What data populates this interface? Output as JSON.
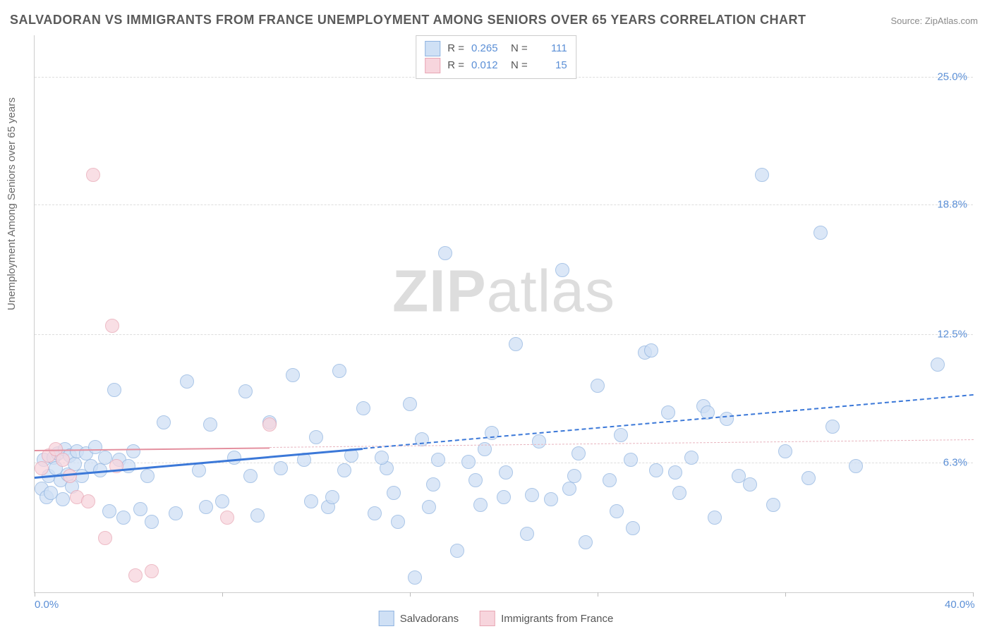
{
  "title": "SALVADORAN VS IMMIGRANTS FROM FRANCE UNEMPLOYMENT AMONG SENIORS OVER 65 YEARS CORRELATION CHART",
  "source": "Source: ZipAtlas.com",
  "ylabel": "Unemployment Among Seniors over 65 years",
  "watermark_a": "ZIP",
  "watermark_b": "atlas",
  "chart": {
    "type": "scatter",
    "xlim": [
      0,
      40
    ],
    "ylim": [
      0,
      27
    ],
    "x_ticks": [
      0,
      8,
      16,
      24,
      32,
      40
    ],
    "x_tick_labels_shown": {
      "0": "0.0%",
      "40": "40.0%"
    },
    "y_ticks": [
      6.3,
      12.5,
      18.8,
      25.0
    ],
    "y_tick_labels": [
      "6.3%",
      "12.5%",
      "18.8%",
      "25.0%"
    ],
    "grid_color": "#dddddd",
    "axis_color": "#cccccc",
    "background_color": "#ffffff",
    "tick_label_color": "#5b8fd6",
    "label_fontsize": 15,
    "title_fontsize": 18,
    "point_radius": 9,
    "series": [
      {
        "name": "Salvadorans",
        "fill": "#cfe0f5",
        "stroke": "#8fb3e0",
        "fill_opacity": 0.75,
        "trend": {
          "x1": 0,
          "y1": 5.6,
          "x2": 40,
          "y2": 9.6,
          "color": "#3b78d8",
          "width": 3,
          "dash_after_x": 14,
          "dash_color": "#3b78d8"
        },
        "R": "0.265",
        "N": "111",
        "points": [
          [
            0.3,
            5.4
          ],
          [
            0.4,
            6.8
          ],
          [
            0.5,
            5.0
          ],
          [
            0.6,
            6.0
          ],
          [
            0.7,
            5.2
          ],
          [
            0.8,
            6.9
          ],
          [
            0.9,
            6.4
          ],
          [
            1.0,
            7.1
          ],
          [
            1.1,
            5.8
          ],
          [
            1.2,
            4.9
          ],
          [
            1.3,
            7.3
          ],
          [
            1.4,
            6.1
          ],
          [
            1.5,
            7.0
          ],
          [
            1.6,
            5.5
          ],
          [
            1.7,
            6.6
          ],
          [
            1.8,
            7.2
          ],
          [
            2.0,
            6.0
          ],
          [
            2.2,
            7.1
          ],
          [
            2.4,
            6.5
          ],
          [
            2.6,
            7.4
          ],
          [
            2.8,
            6.3
          ],
          [
            3.0,
            6.9
          ],
          [
            3.2,
            4.3
          ],
          [
            3.4,
            10.2
          ],
          [
            3.6,
            6.8
          ],
          [
            3.8,
            4.0
          ],
          [
            4.0,
            6.5
          ],
          [
            4.2,
            7.2
          ],
          [
            4.5,
            4.4
          ],
          [
            4.8,
            6.0
          ],
          [
            5.0,
            3.8
          ],
          [
            5.5,
            8.6
          ],
          [
            6.0,
            4.2
          ],
          [
            6.5,
            10.6
          ],
          [
            7.0,
            6.3
          ],
          [
            7.5,
            8.5
          ],
          [
            8.0,
            4.8
          ],
          [
            8.5,
            6.9
          ],
          [
            9.0,
            10.1
          ],
          [
            9.5,
            4.1
          ],
          [
            10.0,
            8.6
          ],
          [
            10.5,
            6.4
          ],
          [
            11.0,
            10.9
          ],
          [
            11.5,
            6.8
          ],
          [
            12.0,
            7.9
          ],
          [
            12.5,
            4.5
          ],
          [
            13.0,
            11.1
          ],
          [
            13.5,
            7.0
          ],
          [
            14.0,
            9.3
          ],
          [
            14.5,
            4.2
          ],
          [
            15.0,
            6.4
          ],
          [
            15.5,
            3.8
          ],
          [
            16.0,
            9.5
          ],
          [
            16.2,
            1.1
          ],
          [
            16.5,
            7.8
          ],
          [
            17.0,
            5.6
          ],
          [
            17.5,
            16.8
          ],
          [
            18.0,
            2.4
          ],
          [
            18.5,
            6.7
          ],
          [
            19.0,
            4.6
          ],
          [
            19.5,
            8.1
          ],
          [
            20.0,
            5.0
          ],
          [
            20.5,
            12.4
          ],
          [
            21.0,
            3.2
          ],
          [
            21.5,
            7.7
          ],
          [
            22.0,
            4.9
          ],
          [
            22.5,
            16.0
          ],
          [
            23.0,
            6.0
          ],
          [
            23.5,
            2.8
          ],
          [
            24.0,
            10.4
          ],
          [
            24.5,
            5.8
          ],
          [
            25.0,
            8.0
          ],
          [
            25.5,
            3.5
          ],
          [
            26.0,
            12.0
          ],
          [
            26.3,
            12.1
          ],
          [
            26.5,
            6.3
          ],
          [
            27.0,
            9.1
          ],
          [
            27.5,
            5.2
          ],
          [
            28.0,
            6.9
          ],
          [
            28.5,
            9.4
          ],
          [
            28.7,
            9.1
          ],
          [
            29.0,
            4.0
          ],
          [
            29.5,
            8.8
          ],
          [
            30.0,
            6.0
          ],
          [
            30.5,
            5.6
          ],
          [
            31.0,
            20.6
          ],
          [
            31.5,
            4.6
          ],
          [
            32.0,
            7.2
          ],
          [
            33.0,
            5.9
          ],
          [
            33.5,
            17.8
          ],
          [
            34.0,
            8.4
          ],
          [
            35.0,
            6.5
          ],
          [
            38.5,
            11.4
          ],
          [
            20.1,
            6.2
          ],
          [
            12.7,
            5.0
          ],
          [
            9.2,
            6.0
          ],
          [
            11.8,
            4.8
          ],
          [
            22.8,
            5.4
          ],
          [
            24.8,
            4.3
          ],
          [
            14.8,
            6.9
          ],
          [
            16.8,
            4.5
          ],
          [
            18.8,
            5.8
          ],
          [
            13.2,
            6.3
          ],
          [
            15.3,
            5.2
          ],
          [
            17.2,
            6.8
          ],
          [
            19.2,
            7.3
          ],
          [
            21.2,
            5.1
          ],
          [
            23.2,
            7.1
          ],
          [
            25.4,
            6.8
          ],
          [
            27.3,
            6.2
          ],
          [
            7.3,
            4.5
          ]
        ]
      },
      {
        "name": "Immigrants from France",
        "fill": "#f7d5dd",
        "stroke": "#e8a6b4",
        "fill_opacity": 0.75,
        "trend": {
          "x1": 0,
          "y1": 6.9,
          "x2": 40,
          "y2": 7.4,
          "color": "#e4909f",
          "width": 2,
          "dash_after_x": 10,
          "dash_color": "#e8b5bf"
        },
        "R": "0.012",
        "N": "15",
        "points": [
          [
            0.3,
            6.4
          ],
          [
            0.6,
            7.0
          ],
          [
            0.9,
            7.3
          ],
          [
            1.2,
            6.8
          ],
          [
            1.5,
            6.0
          ],
          [
            1.8,
            5.0
          ],
          [
            2.3,
            4.8
          ],
          [
            2.5,
            20.6
          ],
          [
            3.0,
            3.0
          ],
          [
            3.3,
            13.3
          ],
          [
            3.5,
            6.5
          ],
          [
            4.3,
            1.2
          ],
          [
            5.0,
            1.4
          ],
          [
            8.2,
            4.0
          ],
          [
            10.0,
            8.5
          ]
        ]
      }
    ]
  },
  "legend_top": {
    "rows": [
      {
        "swatch_fill": "#cfe0f5",
        "swatch_stroke": "#8fb3e0",
        "R_label": "R =",
        "R": "0.265",
        "N_label": "N =",
        "N": "111"
      },
      {
        "swatch_fill": "#f7d5dd",
        "swatch_stroke": "#e8a6b4",
        "R_label": "R =",
        "R": "0.012",
        "N_label": "N =",
        "N": "15"
      }
    ]
  },
  "legend_bottom": {
    "items": [
      {
        "swatch_fill": "#cfe0f5",
        "swatch_stroke": "#8fb3e0",
        "label": "Salvadorans"
      },
      {
        "swatch_fill": "#f7d5dd",
        "swatch_stroke": "#e8a6b4",
        "label": "Immigrants from France"
      }
    ]
  }
}
